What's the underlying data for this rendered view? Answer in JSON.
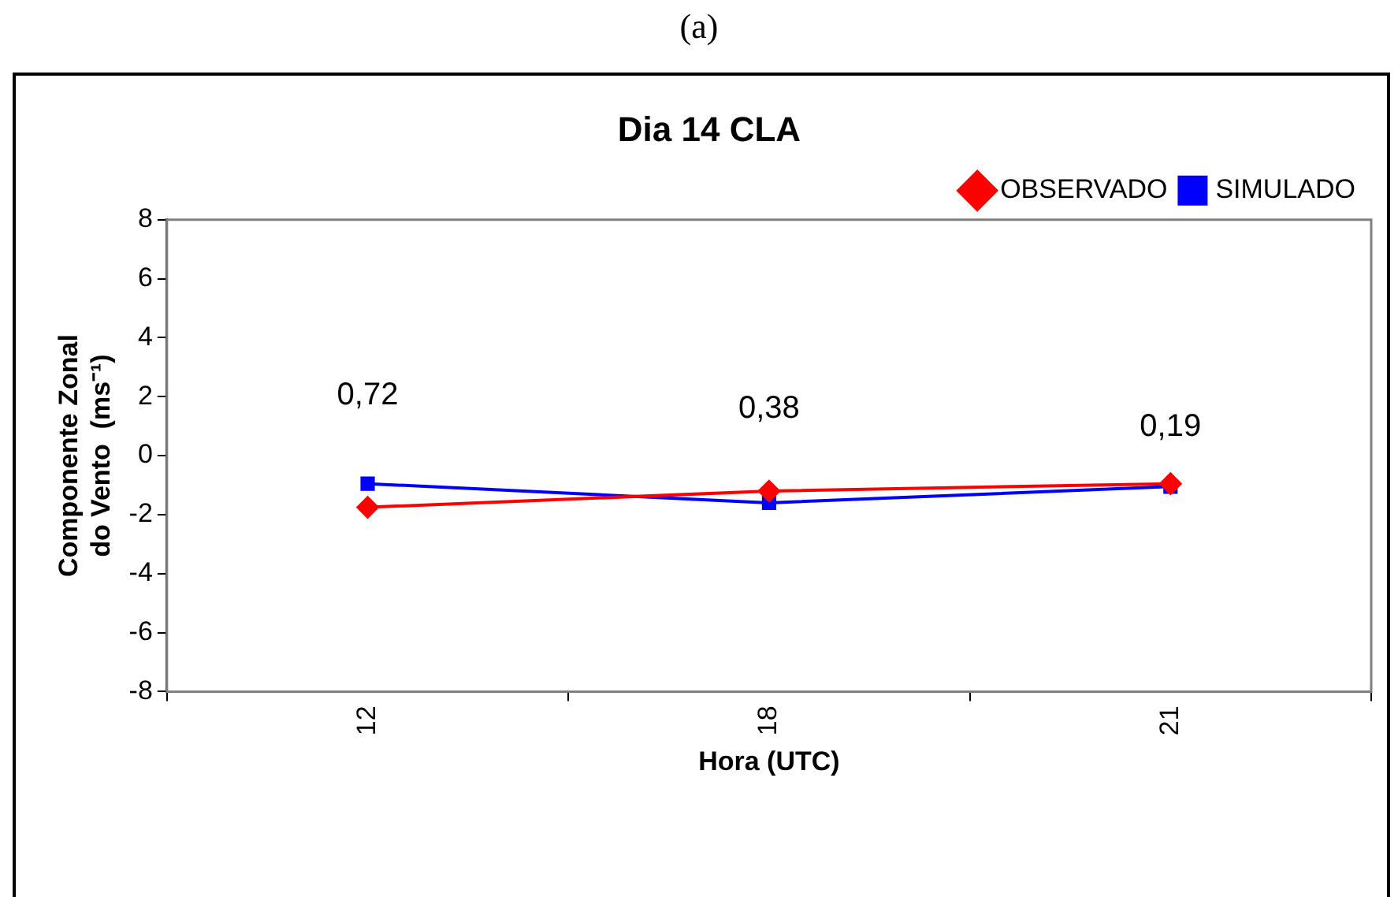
{
  "chart_data": {
    "type": "line",
    "title": "Dia 14 CLA",
    "xlabel": "Hora (UTC)",
    "ylabel": "Componente Zonal\ndo Vento  (ms⁻¹)",
    "categories": [
      "12",
      "18",
      "21"
    ],
    "series": [
      {
        "name": "OBSERVADO",
        "color": "#ff0000",
        "marker": "diamond",
        "values": [
          -1.75,
          -1.2,
          -0.95
        ]
      },
      {
        "name": "SIMULADO",
        "color": "#0000ff",
        "marker": "square",
        "values": [
          -0.95,
          -1.6,
          -1.05
        ]
      }
    ],
    "ylim": [
      -8,
      8
    ],
    "yticks": [
      -8,
      -6,
      -4,
      -2,
      0,
      2,
      4,
      6,
      8
    ],
    "grid": false,
    "legend": "top right",
    "line_style": "solid",
    "annotations": [
      "(a)",
      "0,72",
      "0,38",
      "0,19"
    ]
  }
}
